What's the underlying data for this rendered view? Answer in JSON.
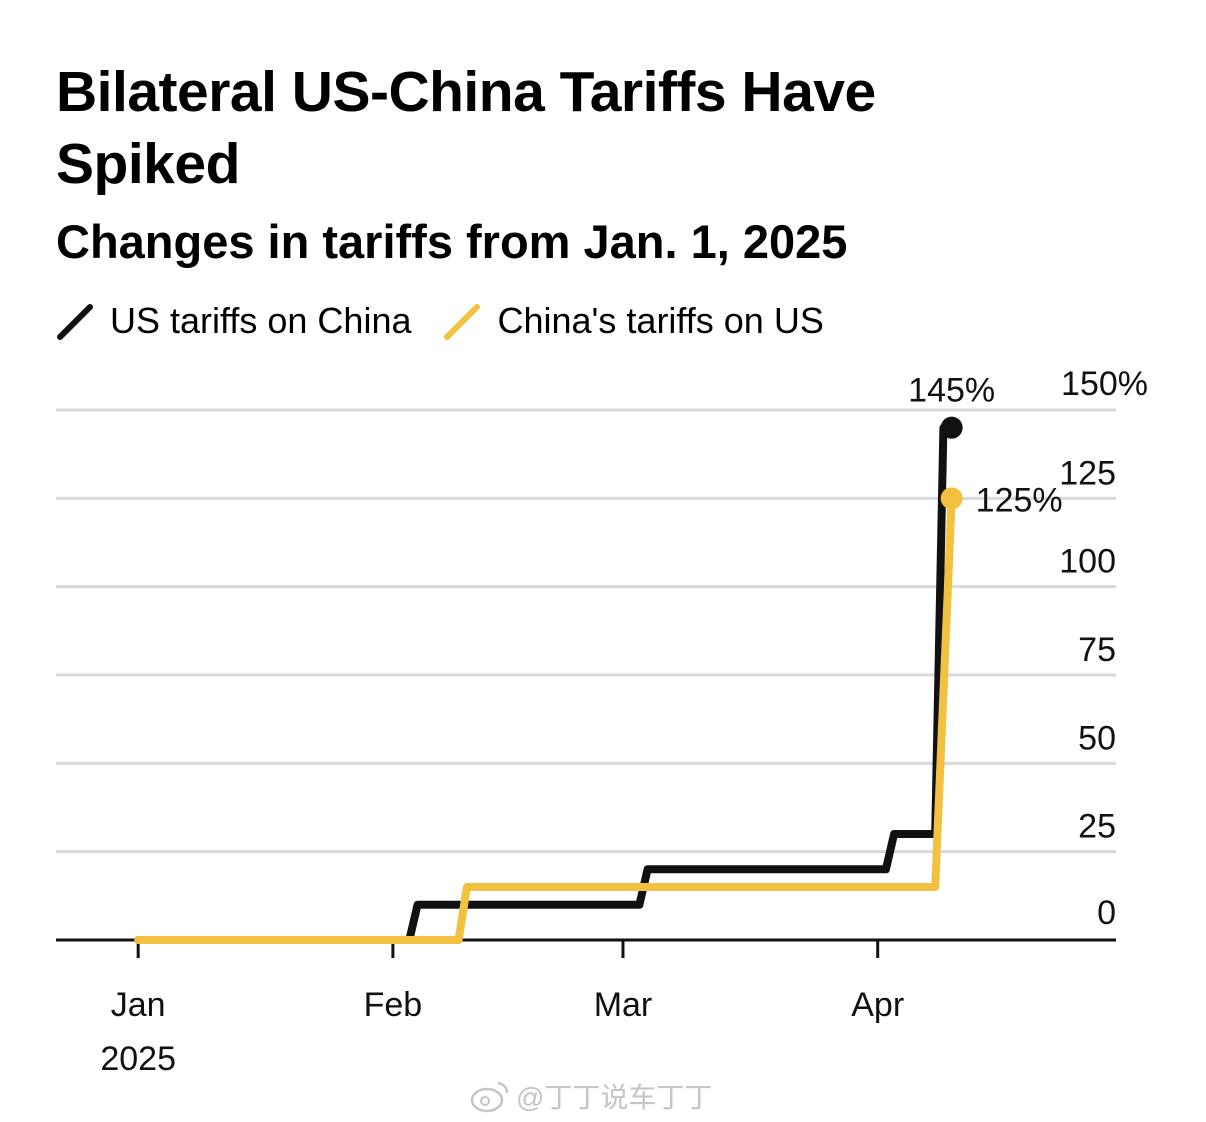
{
  "chart_data": {
    "type": "line",
    "title": "Bilateral US-China Tariffs Have Spiked",
    "subtitle": "Changes in tariffs from Jan. 1, 2025",
    "y_axis": {
      "range": [
        0,
        150
      ],
      "ticks": [
        0,
        25,
        50,
        75,
        100,
        125,
        150
      ],
      "tick_labels": [
        "0",
        "25",
        "50",
        "75",
        "100",
        "125",
        "150%"
      ],
      "position": "right",
      "grid": true
    },
    "x_axis": {
      "type": "date",
      "range": [
        "2024-12-22",
        "2025-04-30"
      ],
      "ticks": [
        {
          "label": "Jan",
          "sublabel": "2025",
          "date": "2025-01-01"
        },
        {
          "label": "Feb",
          "sublabel": "",
          "date": "2025-02-01"
        },
        {
          "label": "Mar",
          "sublabel": "",
          "date": "2025-03-01"
        },
        {
          "label": "Apr",
          "sublabel": "",
          "date": "2025-04-01"
        }
      ]
    },
    "legend_position": "top-left",
    "series": [
      {
        "name": "US tariffs on China",
        "color": "#111111",
        "points": [
          [
            "2025-01-01",
            0
          ],
          [
            "2025-02-03",
            0
          ],
          [
            "2025-02-04",
            10
          ],
          [
            "2025-03-03",
            10
          ],
          [
            "2025-03-04",
            20
          ],
          [
            "2025-04-02",
            20
          ],
          [
            "2025-04-03",
            30
          ],
          [
            "2025-04-08",
            30
          ],
          [
            "2025-04-09",
            145
          ],
          [
            "2025-04-10",
            145
          ]
        ],
        "end_label": "145%"
      },
      {
        "name": "China's tariffs on US",
        "color": "#f2c140",
        "points": [
          [
            "2025-01-01",
            0
          ],
          [
            "2025-02-09",
            0
          ],
          [
            "2025-02-10",
            15
          ],
          [
            "2025-04-08",
            15
          ],
          [
            "2025-04-10",
            125
          ]
        ],
        "end_label": "125%"
      }
    ]
  },
  "watermark": {
    "text": "@丁丁说车丁丁",
    "icon": "weibo-icon"
  }
}
